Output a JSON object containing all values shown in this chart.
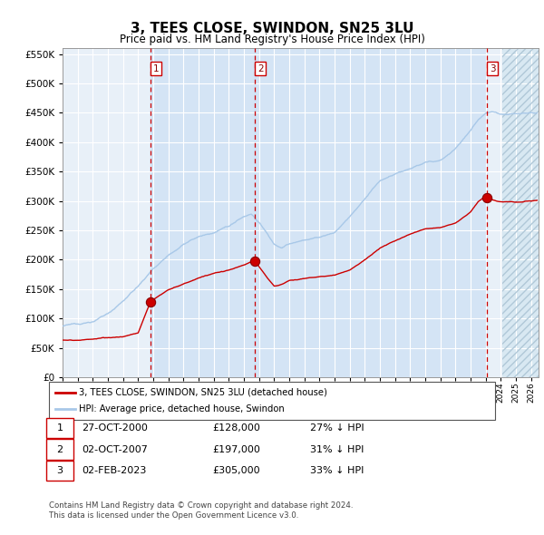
{
  "title": "3, TEES CLOSE, SWINDON, SN25 3LU",
  "subtitle": "Price paid vs. HM Land Registry's House Price Index (HPI)",
  "hpi_color": "#a8c8e8",
  "price_color": "#cc0000",
  "plot_bg": "#e8f0f8",
  "ylim": [
    0,
    560000
  ],
  "yticks": [
    0,
    50000,
    100000,
    150000,
    200000,
    250000,
    300000,
    350000,
    400000,
    450000,
    500000,
    550000
  ],
  "sale_dates": [
    2000.82,
    2007.75,
    2023.09
  ],
  "sale_prices": [
    128000,
    197000,
    305000
  ],
  "sale_labels": [
    "1",
    "2",
    "3"
  ],
  "legend_entries": [
    "3, TEES CLOSE, SWINDON, SN25 3LU (detached house)",
    "HPI: Average price, detached house, Swindon"
  ],
  "table_data": [
    [
      "1",
      "27-OCT-2000",
      "£128,000",
      "27% ↓ HPI"
    ],
    [
      "2",
      "02-OCT-2007",
      "£197,000",
      "31% ↓ HPI"
    ],
    [
      "3",
      "02-FEB-2023",
      "£305,000",
      "33% ↓ HPI"
    ]
  ],
  "footer": "Contains HM Land Registry data © Crown copyright and database right 2024.\nThis data is licensed under the Open Government Licence v3.0.",
  "xmin": 1995.0,
  "xmax": 2026.5,
  "future_start": 2024.08,
  "hpi_ctrl_x": [
    1995,
    1996,
    1997,
    1998,
    1999,
    2000,
    2001,
    2002,
    2003,
    2004,
    2005,
    2006,
    2007,
    2007.5,
    2008,
    2008.5,
    2009,
    2009.5,
    2010,
    2011,
    2012,
    2013,
    2014,
    2015,
    2016,
    2017,
    2018,
    2019,
    2020,
    2021,
    2022,
    2022.5,
    2023,
    2023.5,
    2024,
    2024.5,
    2025,
    2026
  ],
  "hpi_ctrl_y": [
    87000,
    90000,
    95000,
    108000,
    130000,
    155000,
    185000,
    210000,
    230000,
    242000,
    248000,
    258000,
    275000,
    280000,
    265000,
    248000,
    228000,
    222000,
    228000,
    235000,
    240000,
    248000,
    275000,
    305000,
    335000,
    345000,
    355000,
    365000,
    368000,
    390000,
    420000,
    440000,
    452000,
    455000,
    450000,
    448000,
    450000,
    455000
  ],
  "price_ctrl_x": [
    1995,
    1996,
    1997,
    1998,
    1999,
    2000,
    2000.82,
    2001.5,
    2002,
    2003,
    2004,
    2005,
    2006,
    2007,
    2007.75,
    2008,
    2008.5,
    2009,
    2009.5,
    2010,
    2011,
    2012,
    2013,
    2014,
    2015,
    2016,
    2017,
    2018,
    2019,
    2020,
    2021,
    2022,
    2022.5,
    2023,
    2023.09,
    2023.5,
    2024,
    2025,
    2026
  ],
  "price_ctrl_y": [
    63000,
    64000,
    65000,
    66000,
    68000,
    75000,
    128000,
    140000,
    148000,
    158000,
    168000,
    175000,
    180000,
    188000,
    197000,
    185000,
    168000,
    152000,
    155000,
    162000,
    165000,
    168000,
    170000,
    178000,
    195000,
    215000,
    228000,
    240000,
    250000,
    252000,
    260000,
    278000,
    295000,
    305000,
    305000,
    298000,
    295000,
    295000,
    298000
  ]
}
